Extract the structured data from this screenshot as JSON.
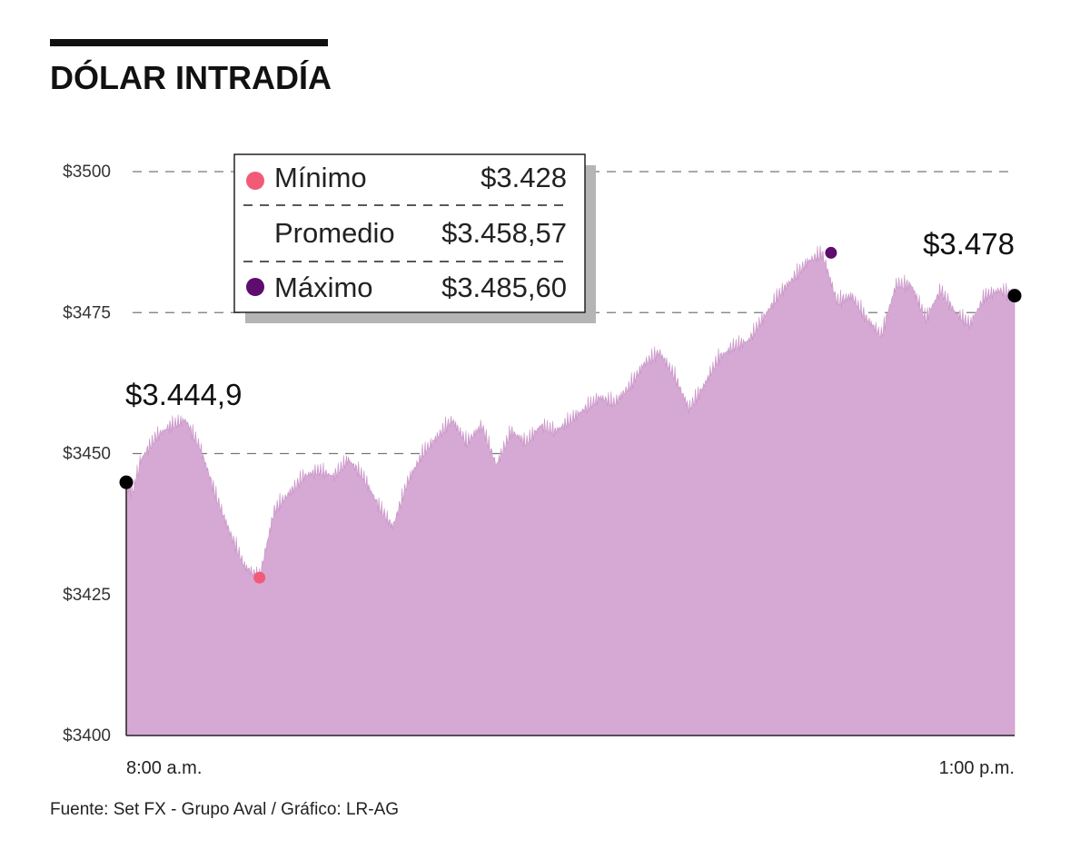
{
  "chart_data": {
    "type": "area",
    "title": "DÓLAR INTRADÍA",
    "source": "Fuente: Set FX - Grupo Aval / Gráfico: LR-AG",
    "y_ticks": [
      "$3500",
      "$3475",
      "$3450",
      "$3425",
      "$3400"
    ],
    "x_ticks": [
      "8:00 a.m.",
      "1:00 p.m."
    ],
    "ylim": [
      3400,
      3500
    ],
    "grid": "dashed-horizontal",
    "fill_color": "#d5a9d3",
    "min_color": "#f25a78",
    "max_color": "#5e0c6e",
    "endpoint_color": "#000000",
    "series": [
      {
        "name": "Dólar",
        "x_minutes": [
          0,
          2,
          5,
          10,
          15,
          20,
          25,
          30,
          35,
          40,
          45,
          50,
          55,
          60,
          65,
          70,
          75,
          80,
          85,
          90,
          95,
          100,
          105,
          110,
          115,
          120,
          125,
          130,
          135,
          140,
          145,
          150,
          155,
          160,
          165,
          170,
          175,
          180,
          185,
          190,
          195,
          200,
          205,
          210,
          215,
          220,
          225,
          230,
          235,
          240,
          245,
          250,
          255,
          260,
          265,
          270,
          275,
          280,
          285,
          290,
          295,
          300
        ],
        "values": [
          3444.9,
          3443,
          3449,
          3453,
          3455,
          3456,
          3451,
          3443,
          3436,
          3430,
          3428,
          3440,
          3443,
          3446,
          3447,
          3446,
          3449,
          3446,
          3441,
          3437,
          3445,
          3450,
          3453,
          3456,
          3452,
          3455,
          3448,
          3454,
          3452,
          3455,
          3454,
          3456,
          3458,
          3460,
          3459,
          3462,
          3466,
          3468,
          3464,
          3458,
          3462,
          3467,
          3469,
          3470,
          3474,
          3478,
          3481,
          3484,
          3485.6,
          3477,
          3478,
          3474,
          3471,
          3480,
          3480,
          3474,
          3479,
          3475,
          3473,
          3478,
          3479,
          3478
        ]
      }
    ],
    "annotations": {
      "open": {
        "label": "$3.444,9",
        "x_minutes": 0,
        "value": 3444.9
      },
      "close": {
        "label": "$3.478",
        "x_minutes": 300,
        "value": 3478
      },
      "min": {
        "x_minutes": 45,
        "value": 3428
      },
      "max": {
        "x_minutes": 238,
        "value": 3485.6
      }
    },
    "legend": {
      "position": "top-left",
      "rows": [
        {
          "label": "Mínimo",
          "value": "$3.428",
          "marker": "min"
        },
        {
          "label": "Promedio",
          "value": "$3.458,57",
          "marker": "none"
        },
        {
          "label": "Máximo",
          "value": "$3.485,60",
          "marker": "max"
        }
      ]
    }
  }
}
